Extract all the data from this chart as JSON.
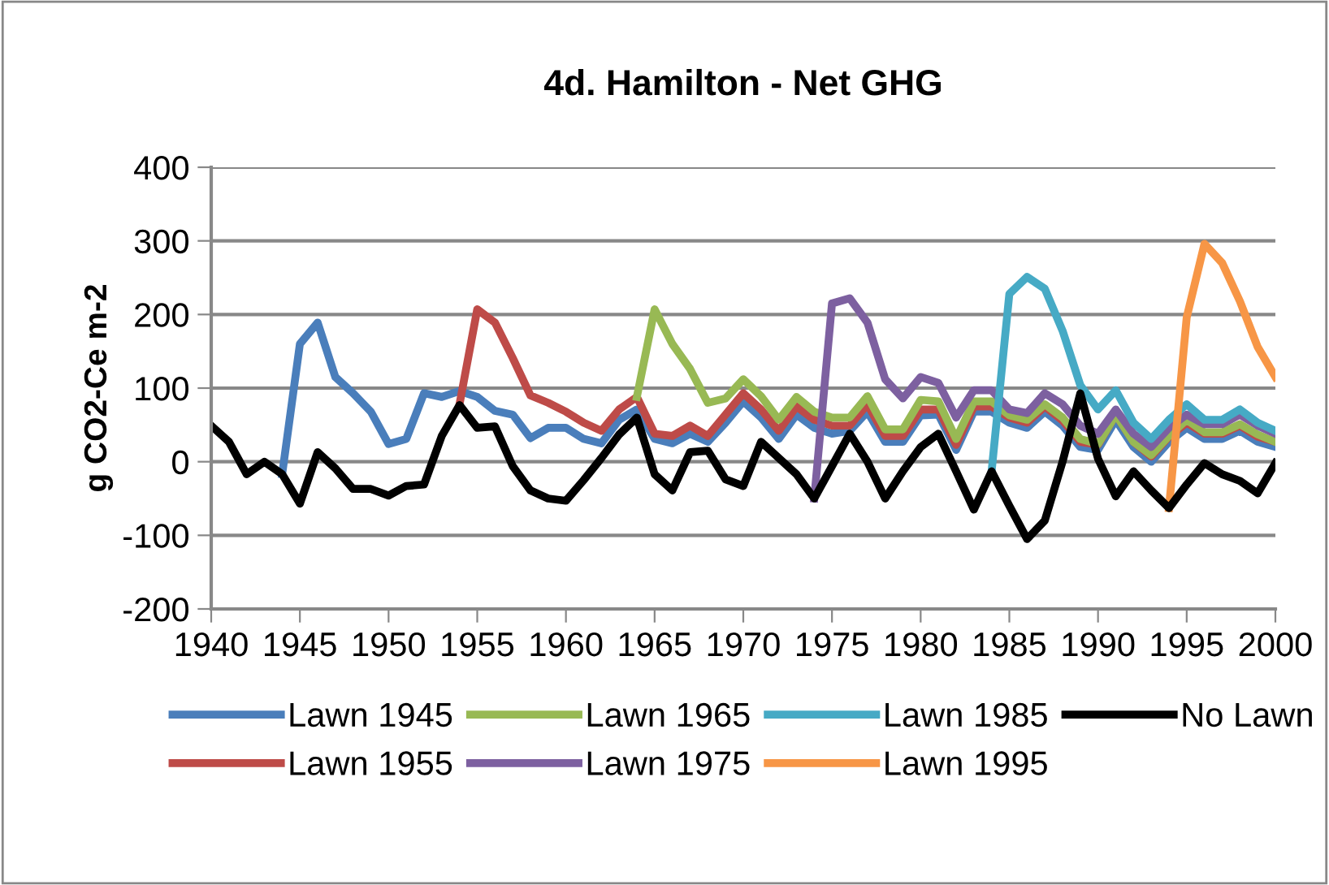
{
  "chart_data": {
    "type": "line",
    "title": "4d. Hamilton - Net GHG",
    "ylabel": "g CO2-Ce m-2",
    "xlim": [
      1940,
      2000
    ],
    "xticks": [
      1940,
      1945,
      1950,
      1955,
      1960,
      1965,
      1970,
      1975,
      1980,
      1985,
      1990,
      1995,
      2000
    ],
    "ylim": [
      -200,
      400
    ],
    "yticks": [
      -200,
      -100,
      0,
      100,
      200,
      300,
      400
    ],
    "grid": "y",
    "legend": "bottom",
    "marker": "none",
    "line_style": "solid",
    "series": [
      {
        "name": "Lawn 1945",
        "color": "#4a7ebb",
        "x": [
          1944,
          1945,
          1946,
          1947,
          1948,
          1949,
          1950,
          1951,
          1952,
          1953,
          1954,
          1955,
          1956,
          1957,
          1958,
          1959,
          1960,
          1961,
          1962,
          1963,
          1964,
          1965,
          1966,
          1967,
          1968,
          1969,
          1970,
          1971,
          1972,
          1973,
          1974,
          1975,
          1976,
          1977,
          1978,
          1979,
          1980,
          1981,
          1982,
          1983,
          1984,
          1985,
          1986,
          1987,
          1988,
          1989,
          1990,
          1991,
          1992,
          1993,
          1994,
          1995,
          1996,
          1997,
          1998,
          1999,
          2000
        ],
        "values": [
          -17,
          160,
          189,
          115,
          93,
          68,
          24,
          31,
          93,
          88,
          96,
          88,
          69,
          64,
          32,
          46,
          46,
          31,
          25,
          57,
          71,
          31,
          25,
          38,
          27,
          53,
          82,
          60,
          31,
          64,
          46,
          38,
          42,
          68,
          27,
          27,
          63,
          64,
          16,
          68,
          68,
          53,
          46,
          68,
          49,
          20,
          16,
          57,
          20,
          0,
          27,
          46,
          31,
          31,
          42,
          27,
          20
        ]
      },
      {
        "name": "Lawn 1955",
        "color": "#be4b48",
        "x": [
          1954,
          1955,
          1956,
          1957,
          1958,
          1959,
          1960,
          1961,
          1962,
          1963,
          1964,
          1965,
          1966,
          1967,
          1968,
          1969,
          1970,
          1971,
          1972,
          1973,
          1974,
          1975,
          1976,
          1977,
          1978,
          1979,
          1980,
          1981,
          1982,
          1983,
          1984,
          1985,
          1986,
          1987,
          1988,
          1989,
          1990,
          1991,
          1992,
          1993,
          1994,
          1995,
          1996,
          1997,
          1998,
          1999,
          2000
        ],
        "values": [
          78,
          207,
          189,
          141,
          90,
          80,
          68,
          53,
          42,
          71,
          88,
          38,
          35,
          49,
          35,
          64,
          93,
          71,
          42,
          75,
          57,
          49,
          49,
          78,
          35,
          35,
          71,
          71,
          23,
          75,
          75,
          60,
          53,
          75,
          56,
          27,
          23,
          64,
          27,
          7,
          34,
          53,
          38,
          38,
          49,
          34,
          27
        ]
      },
      {
        "name": "Lawn 1965",
        "color": "#98b954",
        "x": [
          1964,
          1965,
          1966,
          1967,
          1968,
          1969,
          1970,
          1971,
          1972,
          1973,
          1974,
          1975,
          1976,
          1977,
          1978,
          1979,
          1980,
          1981,
          1982,
          1983,
          1984,
          1985,
          1986,
          1987,
          1988,
          1989,
          1990,
          1991,
          1992,
          1993,
          1994,
          1995,
          1996,
          1997,
          1998,
          1999,
          2000
        ],
        "values": [
          88,
          207,
          160,
          126,
          80,
          86,
          112,
          89,
          57,
          88,
          68,
          60,
          60,
          89,
          44,
          44,
          84,
          82,
          31,
          82,
          82,
          63,
          57,
          78,
          60,
          31,
          24,
          64,
          27,
          9,
          35,
          57,
          40,
          40,
          51,
          37,
          27
        ]
      },
      {
        "name": "Lawn 1975",
        "color": "#7d60a0",
        "x": [
          1974,
          1975,
          1976,
          1977,
          1978,
          1979,
          1980,
          1981,
          1982,
          1983,
          1984,
          1985,
          1986,
          1987,
          1988,
          1989,
          1990,
          1991,
          1992,
          1993,
          1994,
          1995,
          1996,
          1997,
          1998,
          1999,
          2000
        ],
        "values": [
          -50,
          215,
          222,
          189,
          112,
          86,
          115,
          107,
          60,
          97,
          97,
          71,
          66,
          93,
          78,
          49,
          38,
          71,
          38,
          20,
          46,
          64,
          51,
          51,
          64,
          49,
          38
        ]
      },
      {
        "name": "Lawn 1985",
        "color": "#46aac5",
        "x": [
          1984,
          1985,
          1986,
          1987,
          1988,
          1989,
          1990,
          1991,
          1992,
          1993,
          1994,
          1995,
          1996,
          1997,
          1998,
          1999,
          2000
        ],
        "values": [
          -13,
          228,
          251,
          235,
          178,
          104,
          71,
          97,
          53,
          31,
          57,
          78,
          57,
          57,
          71,
          53,
          42
        ]
      },
      {
        "name": "Lawn 1995",
        "color": "#f79646",
        "x": [
          1994,
          1995,
          1996,
          1997,
          1998,
          1999,
          2000
        ],
        "values": [
          -63,
          196,
          296,
          270,
          218,
          156,
          115
        ]
      },
      {
        "name": "No Lawn",
        "color": "#000000",
        "x": [
          1940,
          1941,
          1942,
          1943,
          1944,
          1945,
          1946,
          1947,
          1948,
          1949,
          1950,
          1951,
          1952,
          1953,
          1954,
          1955,
          1956,
          1957,
          1958,
          1959,
          1960,
          1961,
          1962,
          1963,
          1964,
          1965,
          1966,
          1967,
          1968,
          1969,
          1970,
          1971,
          1972,
          1973,
          1974,
          1975,
          1976,
          1977,
          1978,
          1979,
          1980,
          1981,
          1982,
          1983,
          1984,
          1985,
          1986,
          1987,
          1988,
          1989,
          1990,
          1991,
          1992,
          1993,
          1994,
          1995,
          1996,
          1997,
          1998,
          1999,
          2000
        ],
        "values": [
          49,
          27,
          -17,
          0,
          -17,
          -57,
          13,
          -9,
          -37,
          -37,
          -46,
          -33,
          -31,
          35,
          77,
          46,
          48,
          -6,
          -39,
          -50,
          -53,
          -25,
          5,
          37,
          60,
          -17,
          -39,
          13,
          15,
          -24,
          -33,
          27,
          5,
          -17,
          -50,
          -6,
          38,
          0,
          -50,
          -13,
          20,
          38,
          -13,
          -65,
          -13,
          -60,
          -105,
          -80,
          0,
          93,
          4,
          -47,
          -13,
          -39,
          -63,
          -31,
          -2,
          -17,
          -26,
          -43,
          -2
        ]
      }
    ]
  }
}
